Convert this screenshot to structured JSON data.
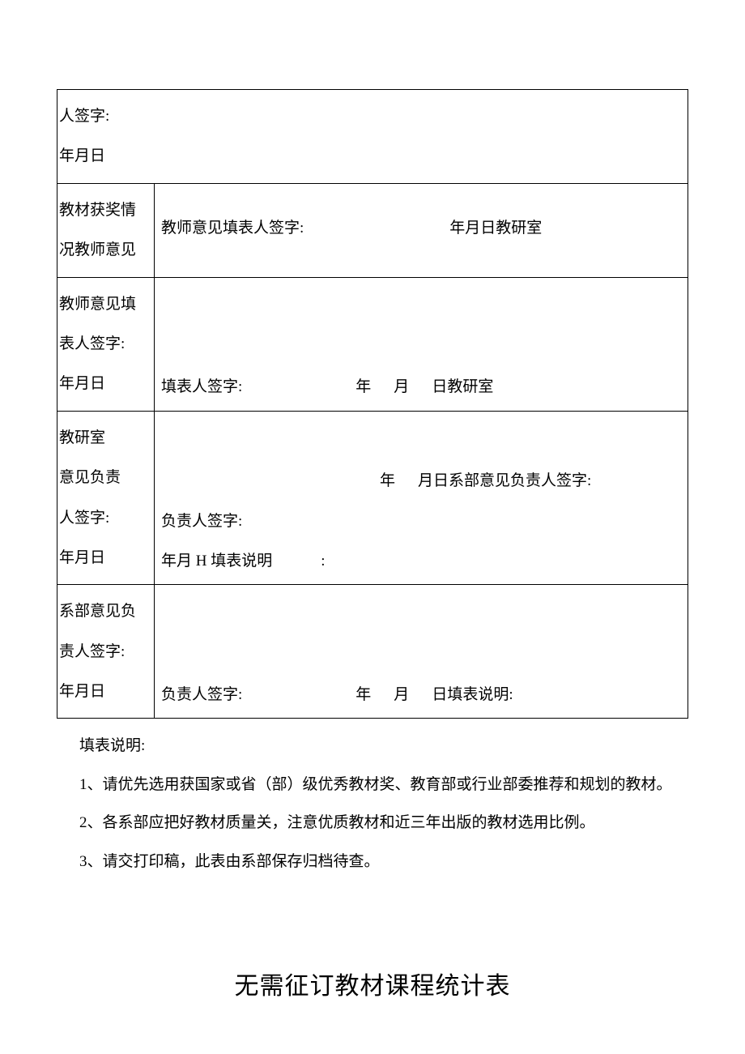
{
  "table": {
    "row1": {
      "left_line1": "人签字:",
      "left_line2": "年月日"
    },
    "row2": {
      "left_line1": "教材获奖情",
      "left_line2": "况教师意见",
      "right_text_a": "教师意见填表人签字:",
      "right_text_b": "年月日教研室"
    },
    "row3": {
      "left_line1": "教师意见填",
      "left_line2": "表人签字:",
      "left_line3": "年月日",
      "right_text_a": "填表人签字:",
      "right_year": "年",
      "right_month": "月",
      "right_day": "日教研室"
    },
    "row4": {
      "left_line1": "教研室",
      "left_line2": "意见负责",
      "left_line3": "人签字:",
      "left_line4": "年月日",
      "right_top_year": "年",
      "right_top_text": "月日系部意见负责人签字:",
      "right_mid": "负责人签字:",
      "right_bottom_a": "年月 H 填表说明",
      "right_bottom_b": ":"
    },
    "row5": {
      "left_line1": "系部意见负",
      "left_line2": "责人签字:",
      "left_line3": "年月日",
      "right_text_a": "负责人签字:",
      "right_year": "年",
      "right_month": "月",
      "right_day": "日填表说明:"
    }
  },
  "notes": {
    "intro": "填表说明:",
    "n1": "1、请优先选用获国家或省（部）级优秀教材奖、教育部或行业部委推荐和规划的教材。",
    "n2": "2、各系部应把好教材质量关，注意优质教材和近三年出版的教材选用比例。",
    "n3": "3、请交打印稿，此表由系部保存归档待查。"
  },
  "title": "无需征订教材课程统计表"
}
